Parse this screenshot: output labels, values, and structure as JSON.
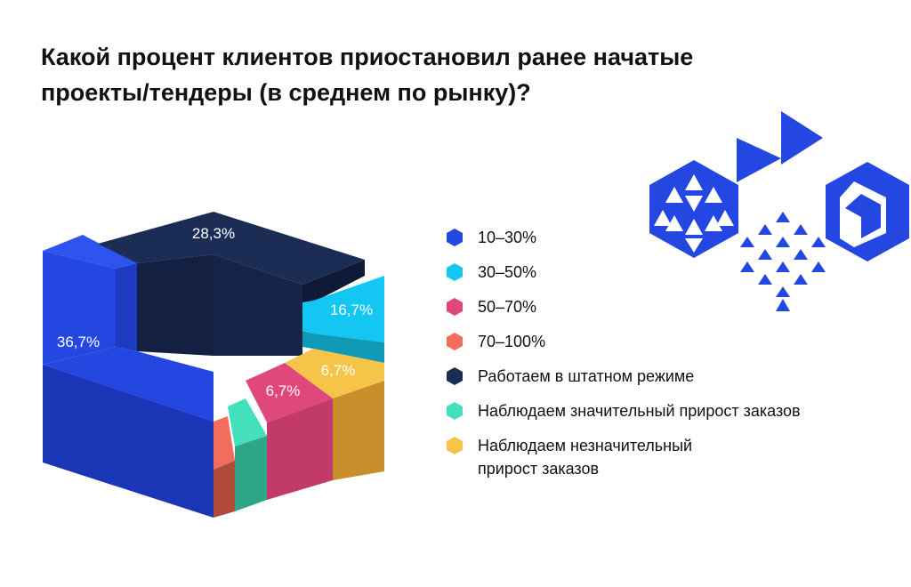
{
  "title": "Какой процент клиентов приостановил ранее начатые проекты/тендеры (в среднем по рынку)?",
  "chart_data": {
    "type": "pie",
    "style": "isometric-3d-ring",
    "title": "Какой процент клиентов приостановил ранее начатые проекты/тендеры (в среднем по рынку)?",
    "series": [
      {
        "category": "10–30%",
        "value": 36.7,
        "label": "36,7%",
        "color": "#2347e0"
      },
      {
        "category": "30–50%",
        "value": 16.7,
        "label": "16,7%",
        "color": "#14c6f2"
      },
      {
        "category": "50–70%",
        "value": 6.7,
        "label": "6,7%",
        "color": "#e0477a"
      },
      {
        "category": "70–100%",
        "value": null,
        "label": "",
        "color": "#f26d5b"
      },
      {
        "category": "Работаем в штатном режиме",
        "value": 28.3,
        "label": "28,3%",
        "color": "#1b2d55"
      },
      {
        "category": "Наблюдаем значительный прирост заказов",
        "value": null,
        "label": "",
        "color": "#44e0bd"
      },
      {
        "category": "Наблюдаем незначительный прирост заказов",
        "value": 6.7,
        "label": "6,7%",
        "color": "#f7c44a"
      }
    ],
    "legend_position": "right"
  },
  "legend": [
    {
      "label": "10–30%",
      "color": "#2347e0"
    },
    {
      "label": "30–50%",
      "color": "#14c6f2"
    },
    {
      "label": "50–70%",
      "color": "#e0477a"
    },
    {
      "label": "70–100%",
      "color": "#f26d5b"
    },
    {
      "label": "Работаем в штатном режиме",
      "color": "#1b2d55"
    },
    {
      "label": "Наблюдаем значительный прирост заказов",
      "color": "#44e0bd"
    },
    {
      "label": "Наблюдаем незначительный прирост заказов",
      "color": "#f7c44a"
    }
  ],
  "decoration": {
    "color": "#2347e0",
    "icon": "geometric-pattern-icon"
  }
}
